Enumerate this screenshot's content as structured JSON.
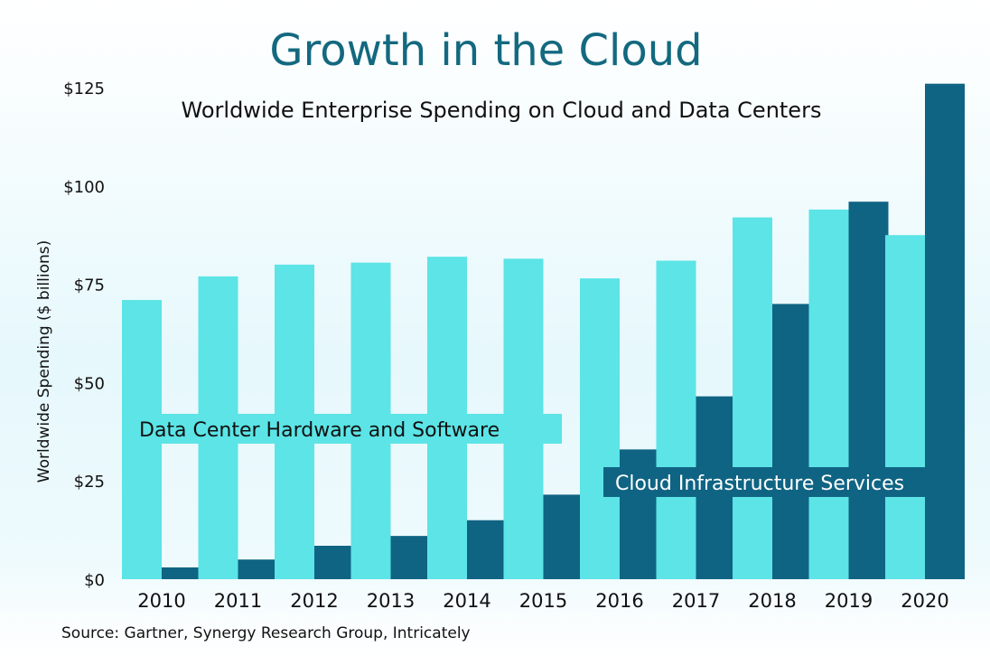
{
  "chart_data": {
    "type": "bar",
    "title": "Growth in the Cloud",
    "subtitle": "Worldwide Enterprise Spending on Cloud and Data Centers",
    "ylabel": "Worldwide Spending ($ billions)",
    "xlabel": "",
    "categories": [
      "2010",
      "2011",
      "2012",
      "2013",
      "2014",
      "2015",
      "2016",
      "2017",
      "2018",
      "2019",
      "2020"
    ],
    "ylim": [
      0,
      125
    ],
    "y_ticks": [
      "$0",
      "$25",
      "$50",
      "$75",
      "$100",
      "$125"
    ],
    "y_tick_values": [
      0,
      25,
      50,
      75,
      100,
      125
    ],
    "series": [
      {
        "name": "Data Center Hardware and Software",
        "color": "#5ce4e6",
        "values": [
          71,
          77,
          80,
          80.5,
          82,
          81.5,
          76.5,
          81,
          92,
          94,
          87.5
        ]
      },
      {
        "name": "Cloud Infrastructure Services",
        "color": "#0f6483",
        "values": [
          3,
          5,
          8.5,
          11,
          15,
          21.5,
          33,
          46.5,
          70,
          96,
          126
        ]
      }
    ],
    "grid": false,
    "legend": "inline labels"
  },
  "source": "Source: Gartner, Synergy Research Group, Intricately"
}
